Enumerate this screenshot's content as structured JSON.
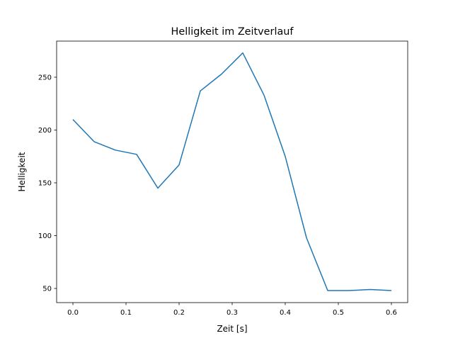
{
  "chart_data": {
    "type": "line",
    "title": "Helligkeit im Zeitverlauf",
    "xlabel": "Zeit [s]",
    "ylabel": "Helligkeit",
    "xlim": [
      -0.0307,
      0.6307
    ],
    "ylim": [
      36.6,
      284.2
    ],
    "xticks": [
      0.0,
      0.1,
      0.2,
      0.3,
      0.4,
      0.5,
      0.6
    ],
    "xtick_labels": [
      "0.0",
      "0.1",
      "0.2",
      "0.3",
      "0.4",
      "0.5",
      "0.6"
    ],
    "yticks": [
      50,
      100,
      150,
      200,
      250
    ],
    "ytick_labels": [
      "50",
      "100",
      "150",
      "200",
      "250"
    ],
    "grid": false,
    "series": [
      {
        "name": "Helligkeit",
        "color": "#1f77b4",
        "x": [
          0.0,
          0.04,
          0.08,
          0.12,
          0.16,
          0.2,
          0.24,
          0.28,
          0.32,
          0.36,
          0.4,
          0.44,
          0.48,
          0.52,
          0.56,
          0.6
        ],
        "y": [
          210,
          189,
          181,
          177,
          145,
          167,
          237,
          253,
          273,
          233,
          175,
          98,
          48,
          48,
          49,
          48
        ]
      }
    ]
  }
}
